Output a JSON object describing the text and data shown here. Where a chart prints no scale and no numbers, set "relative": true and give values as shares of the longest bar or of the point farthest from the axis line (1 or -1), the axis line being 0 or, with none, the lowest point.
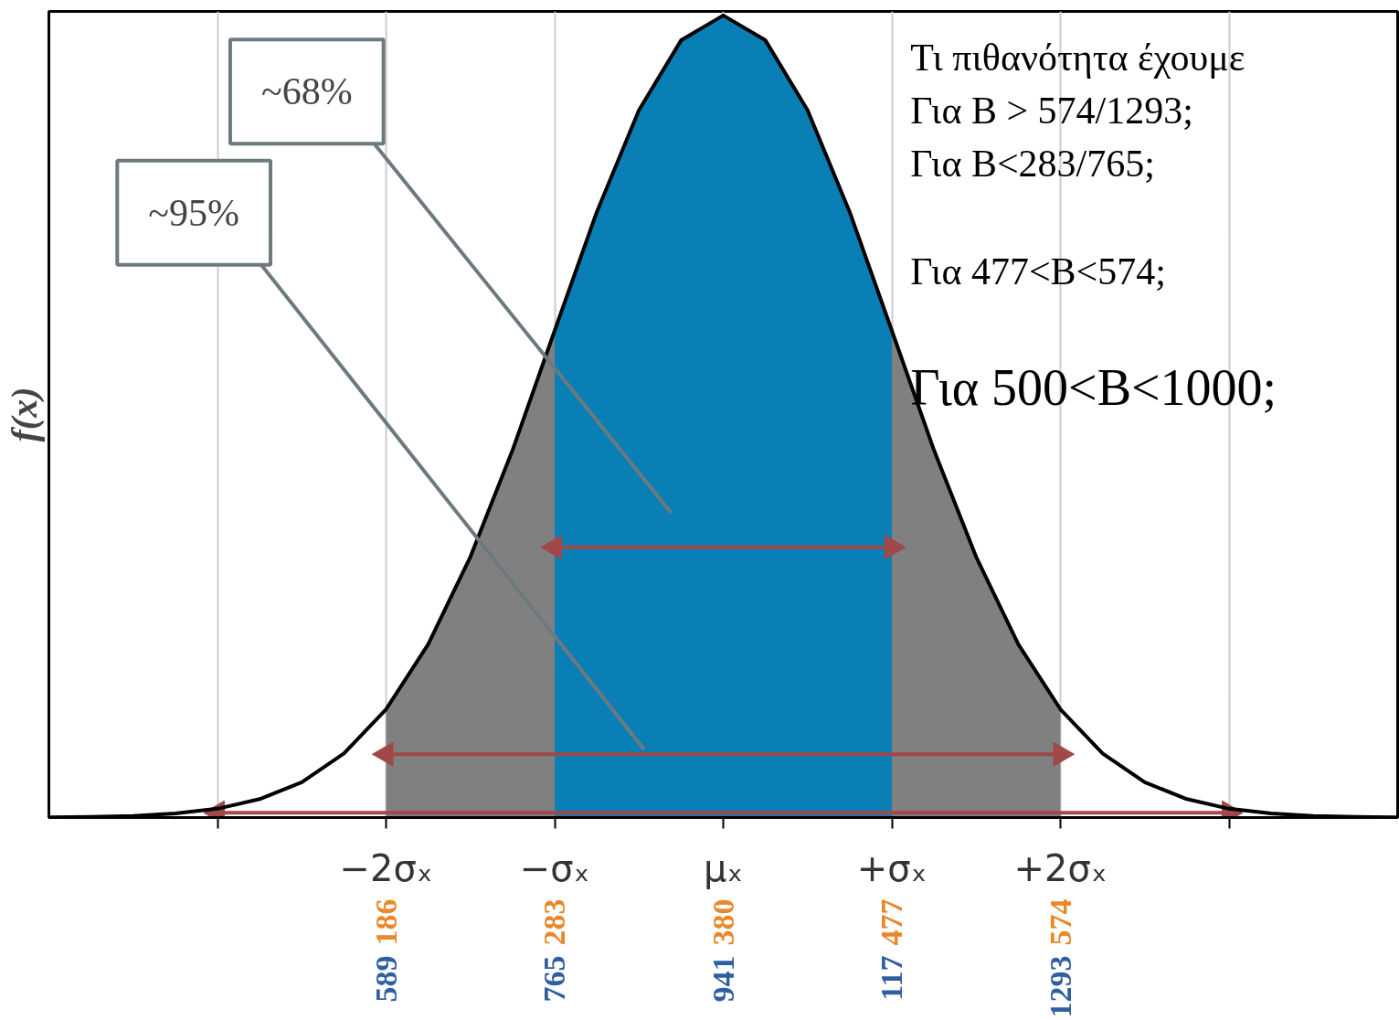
{
  "chart_data": {
    "type": "line",
    "relative": true,
    "ylabel": "f(x)",
    "xlim": [
      -4,
      4
    ],
    "xticks": [
      {
        "value": -3,
        "label": null
      },
      {
        "value": -2,
        "label": "−2σₓ"
      },
      {
        "value": -1,
        "label": "−σₓ"
      },
      {
        "value": 0,
        "label": "μₓ"
      },
      {
        "value": 1,
        "label": "+σₓ"
      },
      {
        "value": 2,
        "label": "+2σₓ"
      },
      {
        "value": 3,
        "label": null
      }
    ],
    "x2lim": [
      -8,
      768
    ],
    "x2ticks": [
      186,
      283,
      380,
      477,
      574
    ],
    "grid": "x",
    "marker": "none",
    "line_style": "solid",
    "series": [
      {
        "type": "area",
        "color": "#808080",
        "x": [
          -2,
          -1.75,
          -1.5,
          -1.25,
          -1
        ],
        "values": [
          0.135,
          0.216,
          0.325,
          0.458,
          0.607
        ]
      },
      {
        "type": "area",
        "color": "#808080",
        "x": [
          1,
          1.25,
          1.5,
          1.75,
          2
        ],
        "values": [
          0.607,
          0.458,
          0.325,
          0.216,
          0.135
        ]
      },
      {
        "type": "area",
        "color": "#0a7fb5",
        "x": [
          -1,
          -0.75,
          -0.5,
          -0.25,
          0,
          0.25,
          0.5,
          0.75,
          1
        ],
        "values": [
          0.607,
          0.755,
          0.882,
          0.969,
          1,
          0.969,
          0.882,
          0.755,
          0.607
        ]
      },
      {
        "color": "#a0484a",
        "marker": "triangle",
        "x": [
          -1,
          1
        ],
        "values": [
          0.337,
          0.337
        ]
      },
      {
        "color": "#a0484a",
        "marker": "triangle",
        "x": [
          -2,
          2
        ],
        "values": [
          0.079,
          0.079
        ]
      },
      {
        "color": "#a0484a",
        "marker": "triangle",
        "x": [
          -3,
          3
        ],
        "values": [
          0.006,
          0.006
        ]
      },
      {
        "color": "#000000",
        "x": [
          -4,
          -3.75,
          -3.5,
          -3.25,
          -3,
          -2.75,
          -2.5,
          -2.25,
          -2,
          -1.75,
          -1.5,
          -1.25,
          -1,
          -0.75,
          -0.5,
          -0.25,
          0,
          0.25,
          0.5,
          0.75,
          1,
          1.25,
          1.5,
          1.75,
          2,
          2.25,
          2.5,
          2.75,
          3,
          3.25,
          3.5,
          3.75,
          4
        ],
        "values": [
          0.0003,
          0.0009,
          0.002,
          0.005,
          0.011,
          0.023,
          0.044,
          0.08,
          0.135,
          0.216,
          0.325,
          0.458,
          0.607,
          0.755,
          0.882,
          0.969,
          1,
          0.969,
          0.882,
          0.755,
          0.607,
          0.458,
          0.325,
          0.216,
          0.135,
          0.08,
          0.044,
          0.023,
          0.011,
          0.005,
          0.002,
          0.0009,
          0.0003
        ]
      }
    ],
    "annotations": [
      "~68%",
      "~95%",
      "Τι πιθανότητα έχουμε",
      "Για B > 574/1293;",
      "Για B<283/765;",
      "Για 477<B<574;",
      "Για 500<B<1000;",
      "589",
      "765",
      "941",
      "117",
      "1293"
    ]
  }
}
